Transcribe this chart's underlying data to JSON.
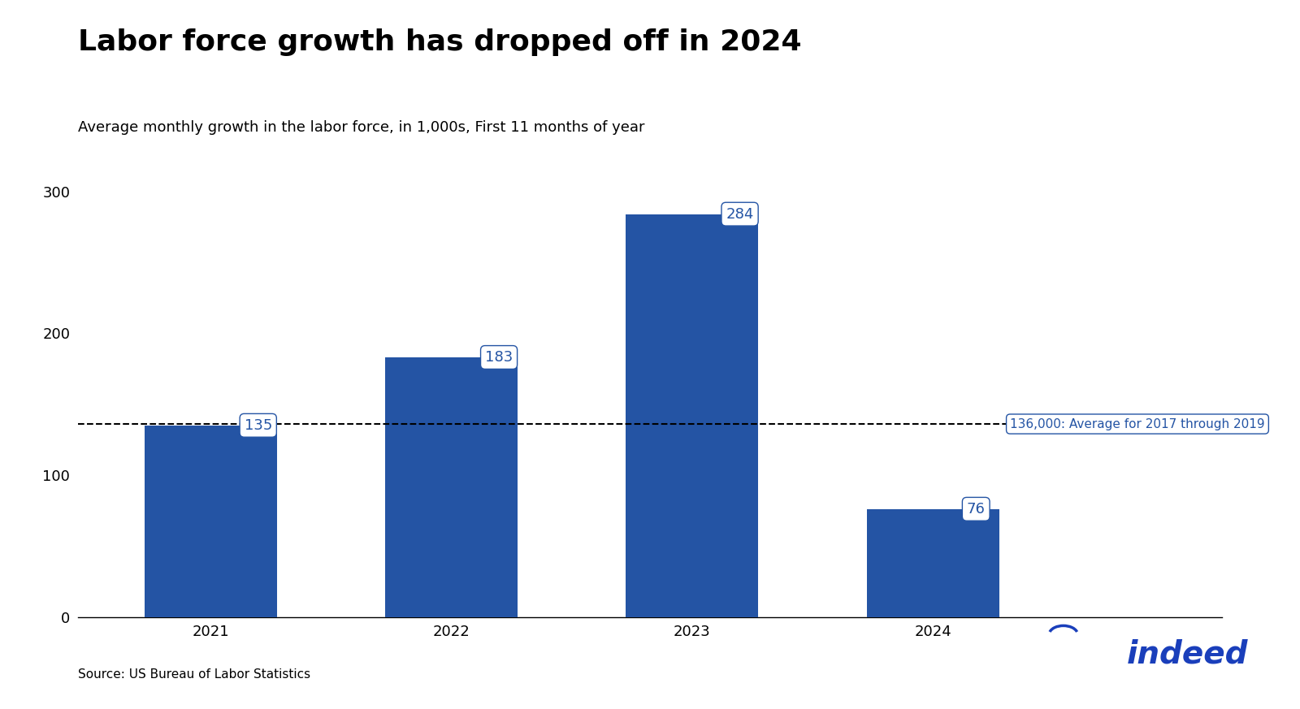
{
  "title": "Labor force growth has dropped off in 2024",
  "subtitle": "Average monthly growth in the labor force, in 1,000s, First 11 months of year",
  "categories": [
    "2021",
    "2022",
    "2023",
    "2024"
  ],
  "values": [
    135,
    183,
    284,
    76
  ],
  "bar_color": "#2454a4",
  "avg_line_value": 136,
  "avg_line_label": "136,000: Average for 2017 through 2019",
  "ylim": [
    0,
    300
  ],
  "yticks": [
    0,
    100,
    200,
    300
  ],
  "source": "Source: US Bureau of Labor Statistics",
  "background_color": "#ffffff",
  "label_color": "#2454a4",
  "label_box_edge_color": "#2454a4",
  "title_fontsize": 26,
  "subtitle_fontsize": 13,
  "tick_fontsize": 13,
  "bar_label_fontsize": 13,
  "source_fontsize": 11,
  "indeed_blue": "#1a3fbb"
}
